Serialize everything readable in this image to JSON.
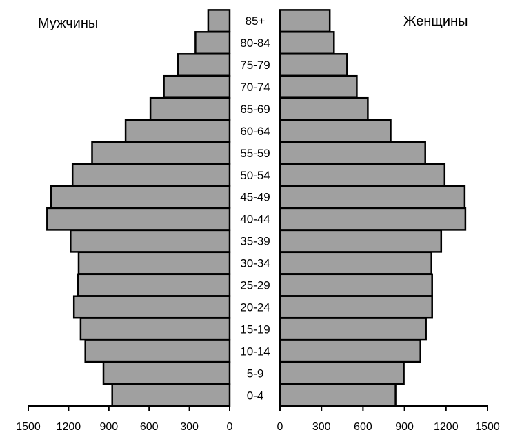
{
  "chart_data": {
    "type": "bar",
    "orientation": "population-pyramid",
    "categories": [
      "0-4",
      "5-9",
      "10-14",
      "15-19",
      "20-24",
      "25-29",
      "30-34",
      "35-39",
      "40-44",
      "45-49",
      "50-54",
      "55-59",
      "60-64",
      "65-69",
      "70-74",
      "75-79",
      "80-84",
      "85+"
    ],
    "series": [
      {
        "name": "Мужчины",
        "side": "left",
        "values": [
          875,
          940,
          1075,
          1110,
          1160,
          1130,
          1125,
          1185,
          1360,
          1330,
          1170,
          1025,
          775,
          590,
          490,
          385,
          255,
          160
        ]
      },
      {
        "name": "Женщины",
        "side": "right",
        "values": [
          835,
          895,
          1015,
          1055,
          1100,
          1100,
          1095,
          1165,
          1340,
          1335,
          1190,
          1050,
          800,
          635,
          555,
          485,
          390,
          360
        ]
      }
    ],
    "xticks": [
      "0",
      "300",
      "600",
      "900",
      "1200",
      "1500"
    ],
    "xlim": [
      0,
      1500
    ],
    "grid": false,
    "colors": {
      "bar_fill": "#a0a0a0",
      "bar_stroke": "#000000"
    }
  }
}
